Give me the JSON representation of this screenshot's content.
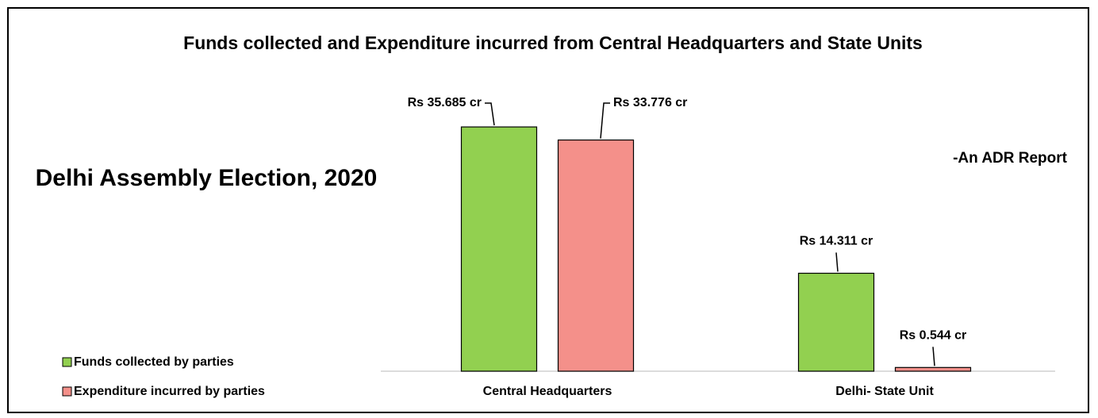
{
  "chart_data": {
    "type": "bar",
    "title": "Funds collected and Expenditure incurred from Central Headquarters and State Units",
    "annotations": [
      "Delhi Assembly Election, 2020",
      "-An ADR Report"
    ],
    "categories": [
      "Central Headquarters",
      "Delhi- State Unit"
    ],
    "series": [
      {
        "name": "Funds collected by parties",
        "color": "#92d050",
        "values": [
          35.685,
          14.311
        ],
        "value_labels": [
          "Rs 35.685 cr",
          "Rs 14.311 cr"
        ]
      },
      {
        "name": "Expenditure incurred by parties",
        "color": "#f4908a",
        "values": [
          33.776,
          0.544
        ],
        "value_labels": [
          "Rs 33.776 cr",
          "Rs 0.544 cr"
        ]
      }
    ],
    "legend": "bottom-left"
  }
}
